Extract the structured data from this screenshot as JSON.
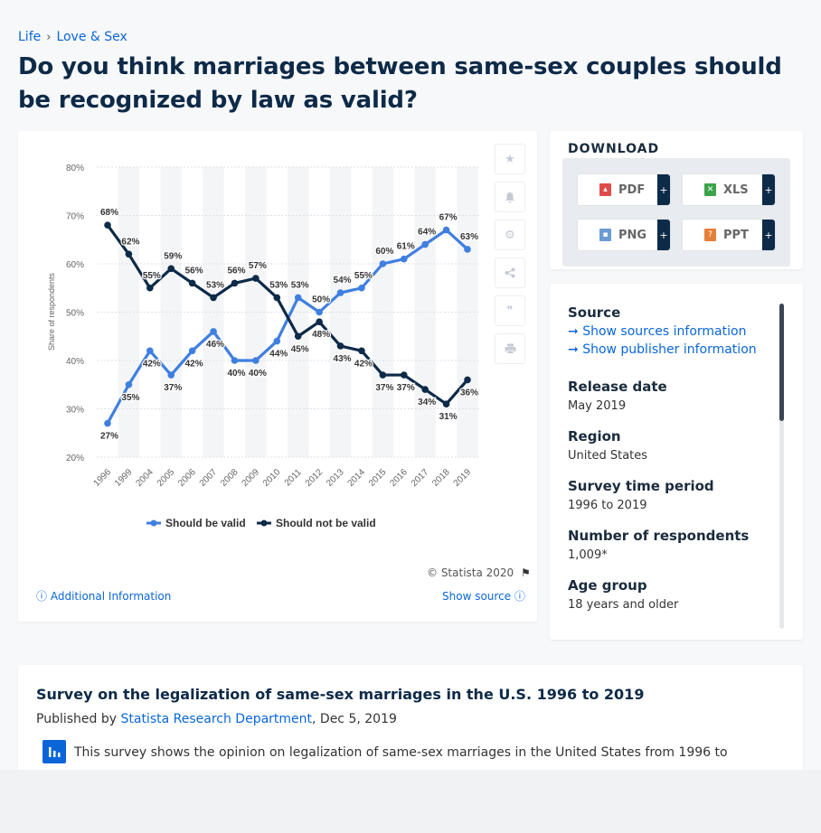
{
  "breadcrumb": {
    "items": [
      "Life",
      "Love & Sex"
    ],
    "separator": "›"
  },
  "page_title": "Do you think marriages between same-sex couples should be recognized by law as valid?",
  "chart_data": {
    "type": "line",
    "x": [
      "1996",
      "1999",
      "2004",
      "2005",
      "2006",
      "2007",
      "2008",
      "2009",
      "2010",
      "2011",
      "2012",
      "2013",
      "2014",
      "2015",
      "2016",
      "2017",
      "2018",
      "2019"
    ],
    "series": [
      {
        "name": "Should be valid",
        "color": "#3f7fe0",
        "values": [
          27,
          35,
          42,
          37,
          42,
          46,
          40,
          40,
          44,
          53,
          50,
          54,
          55,
          60,
          61,
          64,
          67,
          63
        ]
      },
      {
        "name": "Should not be valid",
        "color": "#0d2a48",
        "values": [
          68,
          62,
          55,
          59,
          56,
          53,
          56,
          57,
          53,
          45,
          48,
          43,
          42,
          37,
          37,
          34,
          31,
          36
        ]
      }
    ],
    "ylabel": "Share of respondents",
    "xlabel": "",
    "ylim": [
      20,
      80
    ],
    "yticks": [
      "20%",
      "30%",
      "40%",
      "50%",
      "60%",
      "70%",
      "80%"
    ],
    "value_suffix": "%",
    "grid": true,
    "legend": "bottom-center"
  },
  "chart_footer": {
    "copyright": "© Statista 2020",
    "additional_info": "Additional Information",
    "show_source": "Show source"
  },
  "side_tools": [
    "star-icon",
    "bell-icon",
    "gear-icon",
    "share-icon",
    "quote-icon",
    "print-icon"
  ],
  "download": {
    "title": "DOWNLOAD",
    "buttons": [
      {
        "label": "PDF",
        "color": "#e04b4b"
      },
      {
        "label": "XLS",
        "color": "#3da34a"
      },
      {
        "label": "PNG",
        "color": "#6b9bd2"
      },
      {
        "label": "PPT",
        "color": "#e5803a"
      }
    ],
    "plus": "+"
  },
  "source_panel": {
    "source_heading": "Source",
    "sources_link": "Show sources information",
    "publisher_link": "Show publisher information",
    "fields": [
      {
        "label": "Release date",
        "value": "May 2019"
      },
      {
        "label": "Region",
        "value": "United States"
      },
      {
        "label": "Survey time period",
        "value": "1996 to 2019"
      },
      {
        "label": "Number of respondents",
        "value": "1,009*"
      },
      {
        "label": "Age group",
        "value": "18 years and older"
      }
    ]
  },
  "description": {
    "title": "Survey on the legalization of same-sex marriages in the U.S. 1996 to 2019",
    "published_prefix": "Published by ",
    "publisher": "Statista Research Department",
    "published_suffix": ", Dec 5, 2019",
    "text": "This survey shows the opinion on legalization of same-sex marriages in the United States from 1996 to"
  }
}
